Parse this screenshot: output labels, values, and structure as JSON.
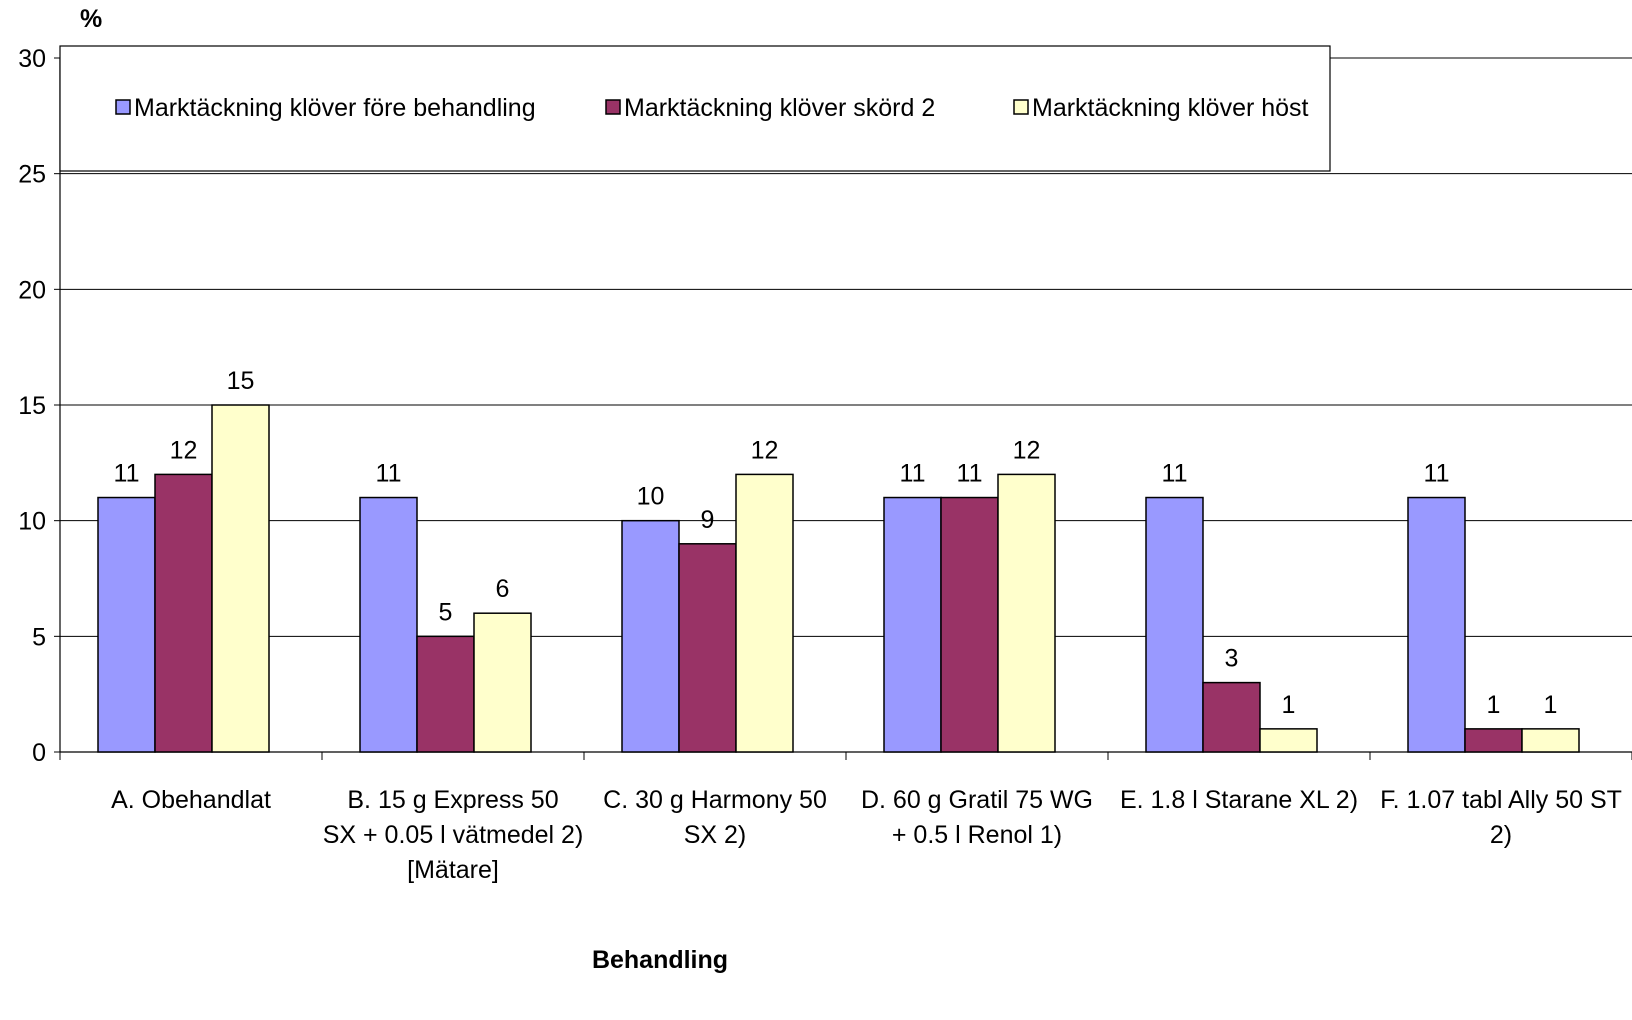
{
  "chart_data": {
    "type": "bar",
    "ylabel": "%",
    "xlabel": "Behandling",
    "ylim": [
      0,
      30
    ],
    "yticks": [
      0,
      5,
      10,
      15,
      20,
      25,
      30
    ],
    "grid": true,
    "legend_position": "top",
    "categories": [
      [
        "A. Obehandlat"
      ],
      [
        "B.  15  g Express 50",
        "SX + 0.05 l vätmedel 2)",
        "[Mätare]"
      ],
      [
        "C.  30  g Harmony 50",
        "SX 2)"
      ],
      [
        "D.  60  g Gratil 75 WG",
        "+ 0.5 l Renol 1)"
      ],
      [
        "E. 1.8  l Starane XL 2)"
      ],
      [
        "F. 1.07 tabl Ally 50 ST",
        "2)"
      ]
    ],
    "series": [
      {
        "name": "Marktäckning klöver före behandling",
        "color": "#9999ff",
        "values": [
          11,
          11,
          10,
          11,
          11,
          11
        ]
      },
      {
        "name": "Marktäckning klöver skörd 2",
        "color": "#993366",
        "values": [
          12,
          5,
          9,
          11,
          3,
          1
        ]
      },
      {
        "name": "Marktäckning klöver höst",
        "color": "#ffffcc",
        "values": [
          15,
          6,
          12,
          12,
          1,
          1
        ]
      }
    ]
  }
}
